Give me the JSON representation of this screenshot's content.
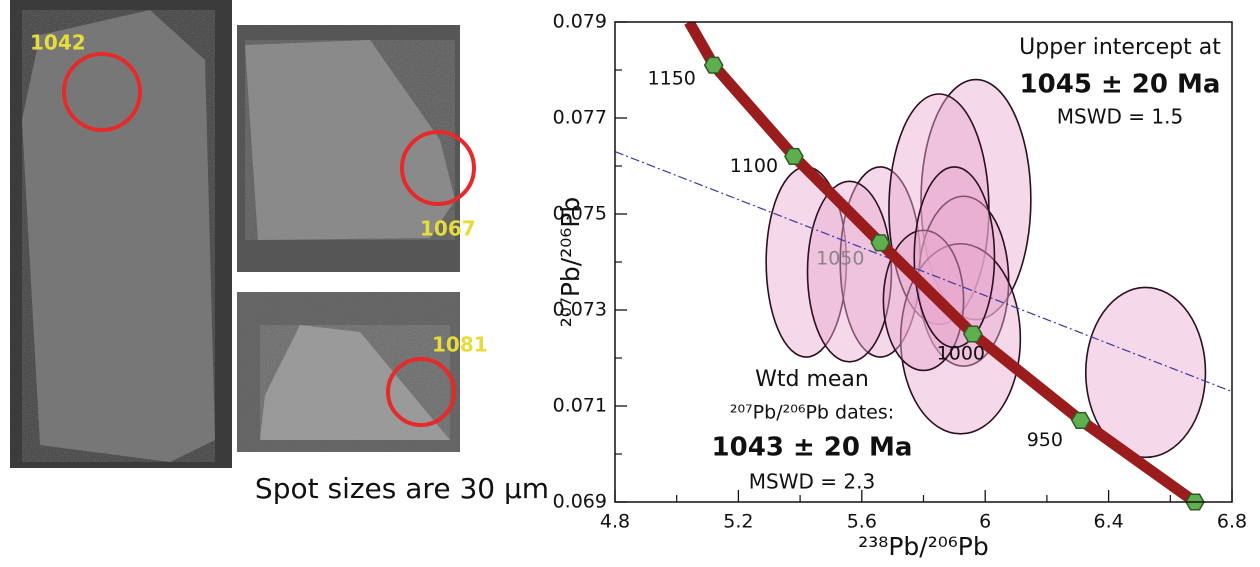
{
  "images": {
    "labels": [
      "1042",
      "1067",
      "1081"
    ],
    "caption": "Spot sizes are 30 µm"
  },
  "chart_data": {
    "type": "concordia",
    "x_label": "²³⁸Pb/²⁰⁶Pb",
    "y_label": "²⁰⁷Pb/²⁰⁶Pb",
    "xlim": [
      4.8,
      6.8
    ],
    "xticks": [
      4.8,
      5.2,
      5.6,
      6.0,
      6.4,
      6.8
    ],
    "xminorticks": [
      5.0,
      5.4,
      5.8,
      6.2,
      6.6
    ],
    "ylim": [
      0.069,
      0.079
    ],
    "yticks": [
      0.069,
      0.071,
      0.073,
      0.075,
      0.077,
      0.079
    ],
    "yminorticks": [
      0.07,
      0.072,
      0.074,
      0.076,
      0.078
    ],
    "curve": {
      "color": "#9b1c1c",
      "x": [
        5.04,
        5.12,
        5.38,
        5.66,
        5.96,
        6.31,
        6.68
      ],
      "y": [
        0.079,
        0.0781,
        0.0762,
        0.0744,
        0.0725,
        0.0707,
        0.069
      ]
    },
    "ages": {
      "color": "#5fae4f",
      "x": [
        5.12,
        5.38,
        5.66,
        5.96,
        6.31,
        6.68
      ],
      "y": [
        0.0781,
        0.0762,
        0.0744,
        0.0725,
        0.0707,
        0.069
      ],
      "labels": [
        "1150",
        "1100",
        "1050",
        "1000",
        "950",
        null
      ]
    },
    "discordia": {
      "color": "#3a3aa8",
      "x": [
        4.8,
        6.8
      ],
      "y": [
        0.0763,
        0.0713
      ]
    },
    "ellipses": {
      "color": "#e8a8cf",
      "x": [
        5.42,
        5.66,
        5.56,
        5.97,
        5.85,
        5.93,
        5.92,
        5.8,
        6.52,
        5.9
      ],
      "y": [
        0.074,
        0.074,
        0.0738,
        0.0753,
        0.0751,
        0.0736,
        0.0724,
        0.0732,
        0.0717,
        0.0741
      ],
      "x_err": [
        0.13,
        0.13,
        0.136,
        0.178,
        0.162,
        0.146,
        0.194,
        0.13,
        0.194,
        0.13
      ],
      "y_err": [
        0.00198,
        0.00198,
        0.00188,
        0.0025,
        0.0024,
        0.00177,
        0.00198,
        0.00146,
        0.00177,
        0.00188
      ]
    },
    "annotations": [
      "Upper intercept at",
      "1045 ± 20 Ma",
      "MSWD = 1.5",
      "Wtd mean",
      "²⁰⁷Pb/²⁰⁶Pb dates:",
      "1043 ± 20 Ma",
      "MSWD = 2.3"
    ]
  }
}
